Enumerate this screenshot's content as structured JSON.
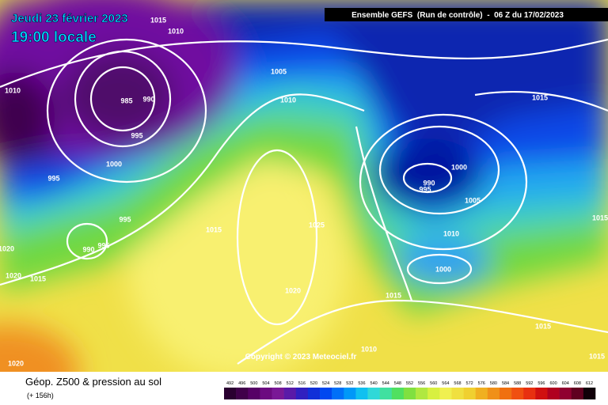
{
  "header": {
    "date": "Jeudi 23 février 2023",
    "time": "19:00 locale",
    "run": "Ensemble GEFS  (Run de contrôle)  -  06 Z du 17/02/2023"
  },
  "copyright": "Copyright © 2023 Meteociel.fr",
  "isobars": [
    1015,
    1010,
    1010,
    985,
    990,
    995,
    1005,
    1010,
    1000,
    995,
    995,
    990,
    995,
    1020,
    1015,
    1020,
    1015,
    1025,
    990,
    995,
    1000,
    1005,
    1010,
    1015,
    1000,
    1020,
    1015,
    1015,
    1010,
    1015,
    1020,
    1015
  ],
  "footer": {
    "title": "Géop. Z500 & pression au sol",
    "lead": "(+ 156h)"
  },
  "legend": {
    "labels": [
      492,
      496,
      500,
      504,
      508,
      512,
      516,
      520,
      524,
      528,
      532,
      536,
      540,
      544,
      548,
      552,
      556,
      560,
      564,
      568,
      572,
      576,
      580,
      584,
      588,
      592,
      596,
      600,
      604,
      608,
      612
    ],
    "colors": [
      "#2a0030",
      "#40004a",
      "#560066",
      "#6c0a80",
      "#7a1896",
      "#5a1aa8",
      "#3020c0",
      "#1030d8",
      "#0048f0",
      "#0070f8",
      "#0098f8",
      "#10c0f0",
      "#30d8d8",
      "#40e0a0",
      "#50e060",
      "#80e040",
      "#b0e840",
      "#d8f040",
      "#f0f050",
      "#f0e040",
      "#f0d030",
      "#f0b020",
      "#f09018",
      "#f07010",
      "#f05010",
      "#e83010",
      "#d01010",
      "#b00020",
      "#900030",
      "#600020",
      "#100008"
    ]
  }
}
